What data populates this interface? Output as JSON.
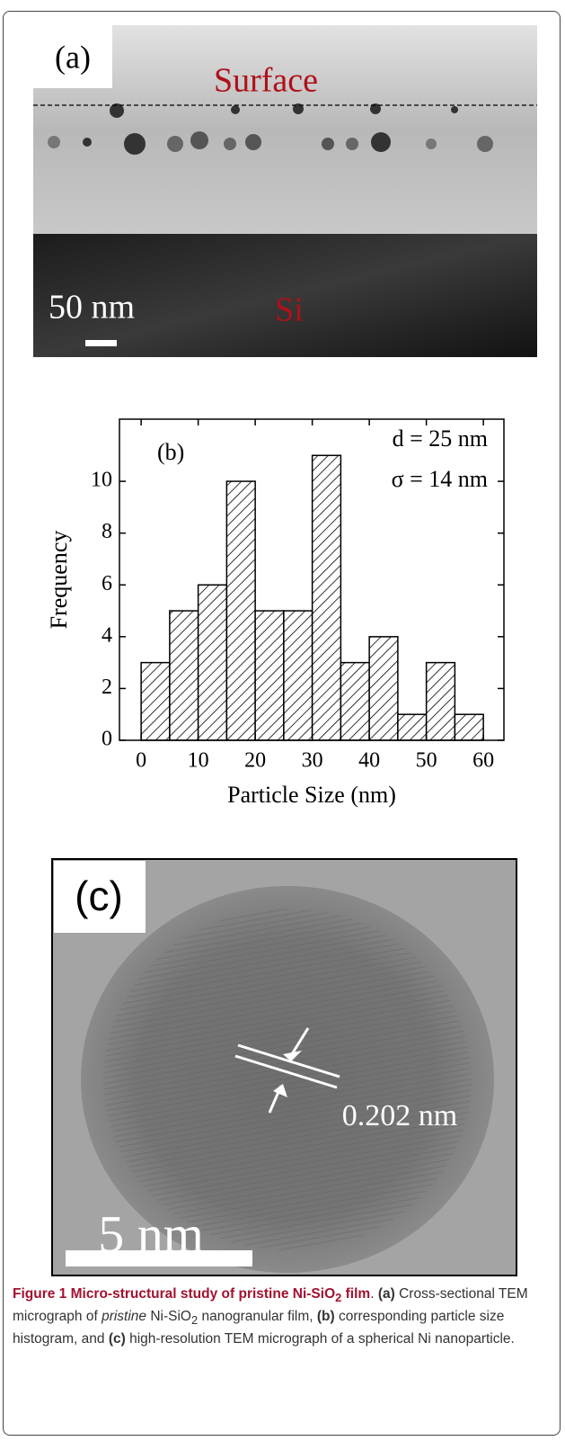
{
  "chart_data": {
    "type": "histogram",
    "x_label": "Particle Size (nm)",
    "y_label": "Frequency",
    "bins": [
      0,
      5,
      10,
      15,
      20,
      25,
      30,
      35,
      40,
      45,
      50,
      55,
      60
    ],
    "values": [
      3,
      5,
      6,
      10,
      5,
      5,
      11,
      3,
      4,
      1,
      3,
      1
    ],
    "xlim": [
      -3.8,
      63.6
    ],
    "ylim": [
      0,
      12.4
    ],
    "xticks": [
      0,
      10,
      20,
      30,
      40,
      50,
      60
    ],
    "yticks": [
      0,
      2,
      4,
      6,
      8,
      10
    ],
    "annotations": [
      "(b)",
      "d = 25 nm",
      "σ = 14 nm"
    ],
    "color": "#000000"
  },
  "panel_a": {
    "label": "(a)",
    "surface": "Surface",
    "scale": "50 nm",
    "substrate": "Si"
  },
  "panel_c": {
    "label": "(c)",
    "spacing": "0.202 nm",
    "scale": "5 nm"
  },
  "caption": [
    "Figure 1 Micro-structural study of pristine Ni-SiO",
    "2",
    " film",
    ". ",
    "(a)",
    " Cross-sectional TEM micrograph of ",
    "pristine",
    " Ni-SiO",
    "2",
    " nanogranular film, ",
    "(b)",
    " corresponding particle size histogram, and ",
    "(c)",
    " high-resolution TEM micrograph of a spherical Ni nanoparticle."
  ]
}
